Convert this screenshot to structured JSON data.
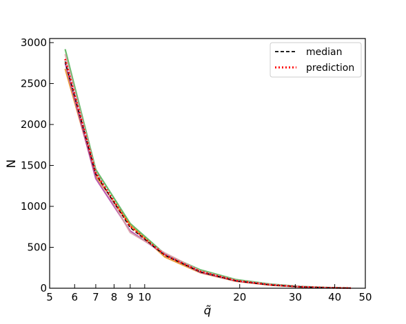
{
  "chart_data": {
    "type": "line",
    "xlabel": "q̃",
    "ylabel": "N",
    "xscale": "log",
    "xlim": [
      5,
      50
    ],
    "ylim": [
      0,
      3050
    ],
    "x_ticks": [
      5,
      6,
      7,
      8,
      9,
      10,
      20,
      30,
      40,
      50
    ],
    "x_tick_labels": [
      "5",
      "6",
      "7",
      "8",
      "9",
      "10",
      "20",
      "30",
      "40",
      "50"
    ],
    "y_ticks": [
      0,
      500,
      1000,
      1500,
      2000,
      2500,
      3000
    ],
    "y_tick_labels": [
      "0",
      "500",
      "1000",
      "1500",
      "2000",
      "2500",
      "3000"
    ],
    "legend_position": "top-right",
    "x": [
      5.6,
      7.0,
      9.0,
      11.6,
      15.0,
      19.5,
      25.0,
      31.0,
      38.0,
      45.0
    ],
    "series": [
      {
        "name": "median",
        "style": "dashed",
        "color": "#000000",
        "values": [
          2770,
          1395,
          740,
          400,
          200,
          90,
          40,
          17,
          6,
          2
        ]
      },
      {
        "name": "prediction",
        "style": "dotted",
        "color": "#ff0000",
        "values": [
          2800,
          1410,
          755,
          405,
          205,
          92,
          42,
          18,
          6,
          2
        ]
      }
    ],
    "band_lines": [
      {
        "color": "#4caf50",
        "values": [
          2920,
          1450,
          790,
          415,
          225,
          105,
          50,
          22,
          8,
          3
        ]
      },
      {
        "color": "#e88c1e",
        "values": [
          2680,
          1370,
          770,
          380,
          190,
          85,
          38,
          16,
          6,
          2
        ]
      },
      {
        "color": "#b03fa0",
        "values": [
          2750,
          1340,
          700,
          410,
          195,
          88,
          40,
          18,
          6,
          2
        ]
      },
      {
        "color": "#d9a0a8",
        "values": [
          2860,
          1420,
          680,
          430,
          210,
          95,
          45,
          20,
          7,
          2
        ]
      }
    ]
  }
}
